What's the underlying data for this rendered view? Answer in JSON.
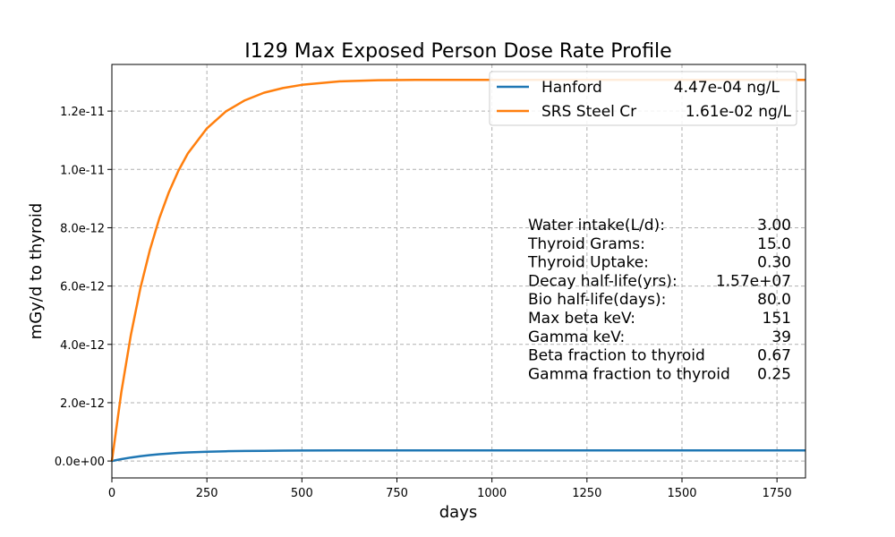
{
  "colors": {
    "hanford": "#1f77b4",
    "srs": "#ff7f0e"
  },
  "chart_data": {
    "type": "line",
    "title": "I129 Max Exposed Person Dose Rate Profile",
    "xlabel": "days",
    "ylabel": "mGy/d to thyroid",
    "xlim": [
      0,
      1825
    ],
    "ylim": [
      -5.8e-13,
      1.36e-11
    ],
    "grid": true,
    "legend_position": "top-right",
    "x_ticks": [
      0,
      250,
      500,
      750,
      1000,
      1250,
      1500,
      1750
    ],
    "x_tick_labels": [
      "0",
      "250",
      "500",
      "750",
      "1000",
      "1250",
      "1500",
      "1750"
    ],
    "y_ticks": [
      0,
      2e-12,
      4e-12,
      6e-12,
      8e-12,
      1e-11,
      1.2e-11
    ],
    "y_tick_labels": [
      "0.0e+00",
      "2.0e-12",
      "4.0e-12",
      "6.0e-12",
      "8.0e-12",
      "1.0e-11",
      "1.2e-11"
    ],
    "x": [
      0,
      25,
      50,
      75,
      100,
      125,
      150,
      175,
      200,
      250,
      300,
      350,
      400,
      450,
      500,
      600,
      700,
      800,
      900,
      1000,
      1200,
      1400,
      1600,
      1825
    ],
    "series": [
      {
        "name": "Hanford",
        "legend_value": "4.47e-04 ng/L",
        "color_key": "hanford",
        "values": [
          0,
          6.6e-14,
          1.21e-13,
          1.66e-13,
          2.03e-13,
          2.33e-13,
          2.58e-13,
          2.78e-13,
          2.95e-13,
          3.19e-13,
          3.35e-13,
          3.44e-13,
          3.51e-13,
          3.55e-13,
          3.58e-13,
          3.61e-13,
          3.62e-13,
          3.62e-13,
          3.62e-13,
          3.62e-13,
          3.62e-13,
          3.62e-13,
          3.62e-13,
          3.62e-13
        ]
      },
      {
        "name": "SRS Steel Cr",
        "legend_value": "1.61e-02 ng/L",
        "color_key": "srs",
        "values": [
          0,
          2.37e-12,
          4.32e-12,
          5.92e-12,
          7.24e-12,
          8.33e-12,
          9.22e-12,
          9.95e-12,
          1.055e-11,
          1.141e-11,
          1.199e-11,
          1.237e-11,
          1.263e-11,
          1.279e-11,
          1.29e-11,
          1.302e-11,
          1.306e-11,
          1.307e-11,
          1.307e-11,
          1.307e-11,
          1.307e-11,
          1.307e-11,
          1.307e-11,
          1.307e-11
        ]
      }
    ]
  },
  "parameters": [
    {
      "label": "Water intake(L/d):",
      "value": "3.00"
    },
    {
      "label": "Thyroid Grams:",
      "value": "15.0"
    },
    {
      "label": "Thyroid Uptake:",
      "value": "0.30"
    },
    {
      "label": "Decay half-life(yrs):",
      "value": "1.57e+07"
    },
    {
      "label": "Bio half-life(days):",
      "value": "80.0"
    },
    {
      "label": "Max beta keV:",
      "value": "151"
    },
    {
      "label": "Gamma keV:",
      "value": "39"
    },
    {
      "label": "Beta fraction to thyroid",
      "value": "0.67"
    },
    {
      "label": "Gamma fraction to thyroid",
      "value": "0.25"
    }
  ]
}
